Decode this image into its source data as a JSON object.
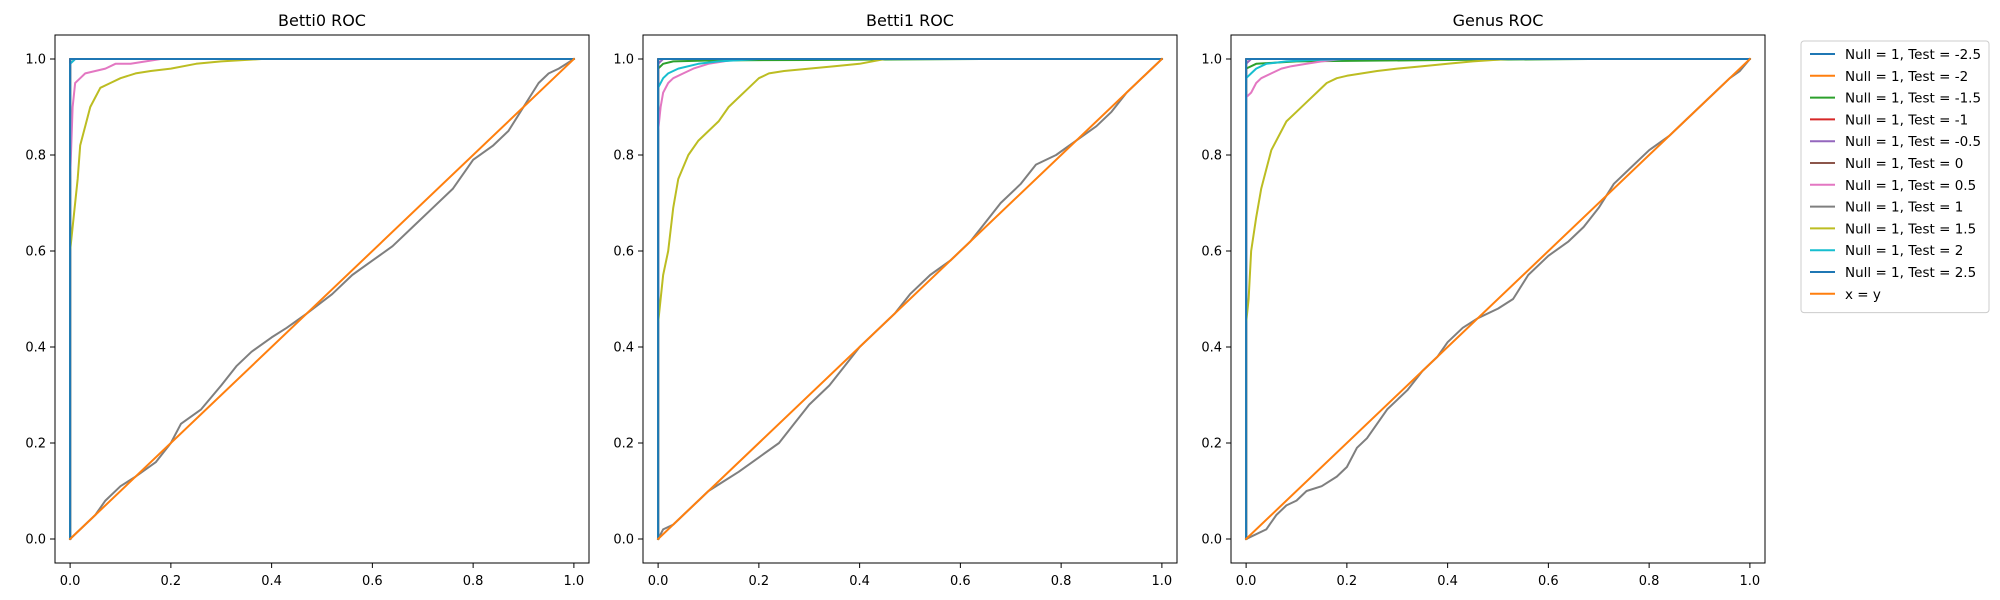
{
  "colors": {
    "null_1_test_-2.5": "#1f77b4",
    "null_1_test_-2": "#ff7f0e",
    "null_1_test_-1.5": "#2ca02c",
    "null_1_test_-1": "#d62728",
    "null_1_test_-0.5": "#9467bd",
    "null_1_test_0": "#8c564b",
    "null_1_test_0.5": "#e377c2",
    "null_1_test_1": "#7f7f7f",
    "null_1_test_1.5": "#bcbd22",
    "null_1_test_2": "#17becf",
    "null_1_test_2.5": "#1f77b4",
    "x_eq_y": "#ff7f0e"
  },
  "legend": {
    "placement": "outside-right-top",
    "entries": [
      "Null = 1, Test = -2.5",
      "Null = 1, Test = -2",
      "Null = 1, Test = -1.5",
      "Null = 1, Test = -1",
      "Null = 1, Test = -0.5",
      "Null = 1, Test = 0",
      "Null = 1, Test = 0.5",
      "Null = 1, Test = 1",
      "Null = 1, Test = 1.5",
      "Null = 1, Test = 2",
      "Null = 1, Test = 2.5",
      "x = y"
    ]
  },
  "chart_data": [
    {
      "type": "line",
      "title": "Betti0 ROC",
      "xlabel": "",
      "ylabel": "",
      "xlim": [
        -0.03,
        1.03
      ],
      "ylim": [
        -0.05,
        1.05
      ],
      "xticks": [
        "0.0",
        "0.2",
        "0.4",
        "0.6",
        "0.8",
        "1.0"
      ],
      "yticks": [
        "0.0",
        "0.2",
        "0.4",
        "0.6",
        "0.8",
        "1.0"
      ],
      "grid": false,
      "series": [
        {
          "name": "Null = 1, Test = -2.5",
          "color": "#1f77b4",
          "x": [
            0,
            0,
            1
          ],
          "y": [
            0,
            1,
            1
          ]
        },
        {
          "name": "Null = 1, Test = -2",
          "color": "#ff7f0e",
          "x": [
            0,
            0,
            1
          ],
          "y": [
            0,
            1,
            1
          ]
        },
        {
          "name": "Null = 1, Test = -1.5",
          "color": "#2ca02c",
          "x": [
            0,
            0,
            1
          ],
          "y": [
            0,
            1,
            1
          ]
        },
        {
          "name": "Null = 1, Test = -1",
          "color": "#d62728",
          "x": [
            0,
            0,
            1
          ],
          "y": [
            0,
            1,
            1
          ]
        },
        {
          "name": "Null = 1, Test = -0.5",
          "color": "#9467bd",
          "x": [
            0,
            0,
            0.01,
            1
          ],
          "y": [
            0,
            0.99,
            1,
            1
          ]
        },
        {
          "name": "Null = 1, Test = 0",
          "color": "#8c564b",
          "x": [
            0,
            0,
            1
          ],
          "y": [
            0,
            1,
            1
          ]
        },
        {
          "name": "Null = 1, Test = 0.5",
          "color": "#e377c2",
          "x": [
            0,
            0,
            0.005,
            0.01,
            0.02,
            0.03,
            0.05,
            0.07,
            0.09,
            0.12,
            0.15,
            0.18,
            1
          ],
          "y": [
            0,
            0.75,
            0.9,
            0.95,
            0.96,
            0.97,
            0.975,
            0.98,
            0.99,
            0.99,
            0.995,
            1,
            1
          ]
        },
        {
          "name": "Null = 1, Test = 1",
          "color": "#7f7f7f",
          "x": [
            0,
            0.02,
            0.05,
            0.07,
            0.1,
            0.13,
            0.17,
            0.2,
            0.22,
            0.26,
            0.3,
            0.33,
            0.36,
            0.4,
            0.43,
            0.47,
            0.52,
            0.56,
            0.6,
            0.64,
            0.68,
            0.72,
            0.76,
            0.8,
            0.84,
            0.87,
            0.9,
            0.93,
            0.95,
            0.97,
            0.985,
            1
          ],
          "y": [
            0,
            0.02,
            0.05,
            0.08,
            0.11,
            0.13,
            0.16,
            0.2,
            0.24,
            0.27,
            0.32,
            0.36,
            0.39,
            0.42,
            0.44,
            0.47,
            0.51,
            0.55,
            0.58,
            0.61,
            0.65,
            0.69,
            0.73,
            0.79,
            0.82,
            0.85,
            0.9,
            0.95,
            0.97,
            0.98,
            0.99,
            1
          ]
        },
        {
          "name": "Null = 1, Test = 1.5",
          "color": "#bcbd22",
          "x": [
            0,
            0,
            0.01,
            0.015,
            0.02,
            0.03,
            0.04,
            0.05,
            0.06,
            0.08,
            0.1,
            0.13,
            0.16,
            0.2,
            0.25,
            0.3,
            0.38,
            1
          ],
          "y": [
            0,
            0.6,
            0.7,
            0.75,
            0.82,
            0.86,
            0.9,
            0.92,
            0.94,
            0.95,
            0.96,
            0.97,
            0.975,
            0.98,
            0.99,
            0.995,
            1,
            1
          ]
        },
        {
          "name": "Null = 1, Test = 2",
          "color": "#17becf",
          "x": [
            0,
            0,
            0.01,
            1
          ],
          "y": [
            0,
            0.99,
            1,
            1
          ]
        },
        {
          "name": "Null = 1, Test = 2.5",
          "color": "#1f77b4",
          "x": [
            0,
            0,
            1
          ],
          "y": [
            0,
            1,
            1
          ]
        },
        {
          "name": "x = y",
          "color": "#ff7f0e",
          "x": [
            0,
            1
          ],
          "y": [
            0,
            1
          ]
        }
      ]
    },
    {
      "type": "line",
      "title": "Betti1 ROC",
      "xlabel": "",
      "ylabel": "",
      "xlim": [
        -0.03,
        1.03
      ],
      "ylim": [
        -0.05,
        1.05
      ],
      "xticks": [
        "0.0",
        "0.2",
        "0.4",
        "0.6",
        "0.8",
        "1.0"
      ],
      "yticks": [
        "0.0",
        "0.2",
        "0.4",
        "0.6",
        "0.8",
        "1.0"
      ],
      "grid": false,
      "series": [
        {
          "name": "Null = 1, Test = -2.5",
          "color": "#1f77b4",
          "x": [
            0,
            0,
            1
          ],
          "y": [
            0,
            1,
            1
          ]
        },
        {
          "name": "Null = 1, Test = -2",
          "color": "#ff7f0e",
          "x": [
            0,
            0,
            1
          ],
          "y": [
            0,
            1,
            1
          ]
        },
        {
          "name": "Null = 1, Test = -1.5",
          "color": "#2ca02c",
          "x": [
            0,
            0,
            0.01,
            0.03,
            0.1,
            0.3,
            0.64,
            1
          ],
          "y": [
            0,
            0.98,
            0.99,
            0.995,
            0.997,
            0.998,
            1,
            1
          ]
        },
        {
          "name": "Null = 1, Test = -1",
          "color": "#d62728",
          "x": [
            0,
            0,
            1
          ],
          "y": [
            0,
            1,
            1
          ]
        },
        {
          "name": "Null = 1, Test = -0.5",
          "color": "#9467bd",
          "x": [
            0,
            0,
            0.01,
            1
          ],
          "y": [
            0,
            0.99,
            1,
            1
          ]
        },
        {
          "name": "Null = 1, Test = 0",
          "color": "#8c564b",
          "x": [
            0,
            0,
            1
          ],
          "y": [
            0,
            1,
            1
          ]
        },
        {
          "name": "Null = 1, Test = 0.5",
          "color": "#e377c2",
          "x": [
            0,
            0,
            0.005,
            0.01,
            0.02,
            0.03,
            0.05,
            0.07,
            0.1,
            0.13,
            0.16,
            1
          ],
          "y": [
            0,
            0.85,
            0.9,
            0.93,
            0.95,
            0.96,
            0.97,
            0.98,
            0.99,
            0.995,
            1,
            1
          ]
        },
        {
          "name": "Null = 1, Test = 1",
          "color": "#7f7f7f",
          "x": [
            0,
            0.01,
            0.03,
            0.05,
            0.08,
            0.1,
            0.13,
            0.16,
            0.2,
            0.24,
            0.27,
            0.3,
            0.34,
            0.37,
            0.4,
            0.44,
            0.47,
            0.5,
            0.54,
            0.58,
            0.62,
            0.65,
            0.68,
            0.72,
            0.75,
            0.79,
            0.83,
            0.87,
            0.9,
            0.93,
            0.96,
            0.98,
            1
          ],
          "y": [
            0,
            0.02,
            0.03,
            0.05,
            0.08,
            0.1,
            0.12,
            0.14,
            0.17,
            0.2,
            0.24,
            0.28,
            0.32,
            0.36,
            0.4,
            0.44,
            0.47,
            0.51,
            0.55,
            0.58,
            0.62,
            0.66,
            0.7,
            0.74,
            0.78,
            0.8,
            0.83,
            0.86,
            0.89,
            0.93,
            0.96,
            0.98,
            1
          ]
        },
        {
          "name": "Null = 1, Test = 1.5",
          "color": "#bcbd22",
          "x": [
            0,
            0,
            0.005,
            0.01,
            0.02,
            0.03,
            0.04,
            0.06,
            0.08,
            0.1,
            0.12,
            0.14,
            0.16,
            0.18,
            0.2,
            0.22,
            0.25,
            0.3,
            0.35,
            0.4,
            0.45,
            0.55,
            1
          ],
          "y": [
            0,
            0.45,
            0.5,
            0.55,
            0.6,
            0.69,
            0.75,
            0.8,
            0.83,
            0.85,
            0.87,
            0.9,
            0.92,
            0.94,
            0.96,
            0.97,
            0.975,
            0.98,
            0.985,
            0.99,
            1,
            1,
            1
          ]
        },
        {
          "name": "Null = 1, Test = 2",
          "color": "#17becf",
          "x": [
            0,
            0,
            0.01,
            0.02,
            0.04,
            0.08,
            0.12,
            0.2,
            1
          ],
          "y": [
            0,
            0.94,
            0.96,
            0.97,
            0.98,
            0.99,
            0.995,
            1,
            1
          ]
        },
        {
          "name": "Null = 1, Test = 2.5",
          "color": "#1f77b4",
          "x": [
            0,
            0,
            1
          ],
          "y": [
            0,
            1,
            1
          ]
        },
        {
          "name": "x = y",
          "color": "#ff7f0e",
          "x": [
            0,
            1
          ],
          "y": [
            0,
            1
          ]
        }
      ]
    },
    {
      "type": "line",
      "title": "Genus ROC",
      "xlabel": "",
      "ylabel": "",
      "xlim": [
        -0.03,
        1.03
      ],
      "ylim": [
        -0.05,
        1.05
      ],
      "xticks": [
        "0.0",
        "0.2",
        "0.4",
        "0.6",
        "0.8",
        "1.0"
      ],
      "yticks": [
        "0.0",
        "0.2",
        "0.4",
        "0.6",
        "0.8",
        "1.0"
      ],
      "grid": false,
      "series": [
        {
          "name": "Null = 1, Test = -2.5",
          "color": "#1f77b4",
          "x": [
            0,
            0,
            1
          ],
          "y": [
            0,
            1,
            1
          ]
        },
        {
          "name": "Null = 1, Test = -2",
          "color": "#ff7f0e",
          "x": [
            0,
            0,
            1
          ],
          "y": [
            0,
            1,
            1
          ]
        },
        {
          "name": "Null = 1, Test = -1.5",
          "color": "#2ca02c",
          "x": [
            0,
            0,
            0.02,
            0.1,
            0.4,
            0.68,
            1
          ],
          "y": [
            0,
            0.98,
            0.99,
            0.995,
            0.998,
            1,
            1
          ]
        },
        {
          "name": "Null = 1, Test = -1",
          "color": "#d62728",
          "x": [
            0,
            0,
            1
          ],
          "y": [
            0,
            1,
            1
          ]
        },
        {
          "name": "Null = 1, Test = -0.5",
          "color": "#9467bd",
          "x": [
            0,
            0,
            0.01,
            1
          ],
          "y": [
            0,
            0.99,
            1,
            1
          ]
        },
        {
          "name": "Null = 1, Test = 0",
          "color": "#8c564b",
          "x": [
            0,
            0,
            1
          ],
          "y": [
            0,
            1,
            1
          ]
        },
        {
          "name": "Null = 1, Test = 0.5",
          "color": "#e377c2",
          "x": [
            0,
            0,
            0.01,
            0.02,
            0.03,
            0.05,
            0.07,
            0.09,
            0.12,
            0.15,
            0.19,
            1
          ],
          "y": [
            0,
            0.92,
            0.93,
            0.95,
            0.96,
            0.97,
            0.98,
            0.985,
            0.99,
            0.995,
            1,
            1
          ]
        },
        {
          "name": "Null = 1, Test = 1",
          "color": "#7f7f7f",
          "x": [
            0,
            0.02,
            0.04,
            0.06,
            0.08,
            0.1,
            0.12,
            0.15,
            0.18,
            0.2,
            0.22,
            0.24,
            0.26,
            0.28,
            0.3,
            0.32,
            0.35,
            0.38,
            0.4,
            0.43,
            0.46,
            0.5,
            0.53,
            0.56,
            0.6,
            0.64,
            0.67,
            0.7,
            0.73,
            0.76,
            0.8,
            0.84,
            0.87,
            0.9,
            0.93,
            0.96,
            0.98,
            1
          ],
          "y": [
            0,
            0.01,
            0.02,
            0.05,
            0.07,
            0.08,
            0.1,
            0.11,
            0.13,
            0.15,
            0.19,
            0.21,
            0.24,
            0.27,
            0.29,
            0.31,
            0.35,
            0.38,
            0.41,
            0.44,
            0.46,
            0.48,
            0.5,
            0.55,
            0.59,
            0.62,
            0.65,
            0.69,
            0.74,
            0.77,
            0.81,
            0.84,
            0.87,
            0.9,
            0.93,
            0.96,
            0.975,
            1
          ]
        },
        {
          "name": "Null = 1, Test = 1.5",
          "color": "#bcbd22",
          "x": [
            0,
            0,
            0.005,
            0.01,
            0.02,
            0.03,
            0.04,
            0.05,
            0.07,
            0.08,
            0.1,
            0.12,
            0.14,
            0.16,
            0.18,
            0.2,
            0.23,
            0.26,
            0.3,
            0.35,
            0.4,
            0.45,
            0.52,
            1
          ],
          "y": [
            0,
            0.45,
            0.5,
            0.6,
            0.67,
            0.73,
            0.77,
            0.81,
            0.85,
            0.87,
            0.89,
            0.91,
            0.93,
            0.95,
            0.96,
            0.965,
            0.97,
            0.975,
            0.98,
            0.985,
            0.99,
            0.995,
            1,
            1
          ]
        },
        {
          "name": "Null = 1, Test = 2",
          "color": "#17becf",
          "x": [
            0,
            0,
            0.01,
            0.02,
            0.04,
            0.08,
            0.13,
            0.2,
            1
          ],
          "y": [
            0,
            0.96,
            0.97,
            0.98,
            0.99,
            0.995,
            0.998,
            1,
            1
          ]
        },
        {
          "name": "Null = 1, Test = 2.5",
          "color": "#1f77b4",
          "x": [
            0,
            0,
            1
          ],
          "y": [
            0,
            1,
            1
          ]
        },
        {
          "name": "x = y",
          "color": "#ff7f0e",
          "x": [
            0,
            1
          ],
          "y": [
            0,
            1
          ]
        }
      ]
    }
  ]
}
